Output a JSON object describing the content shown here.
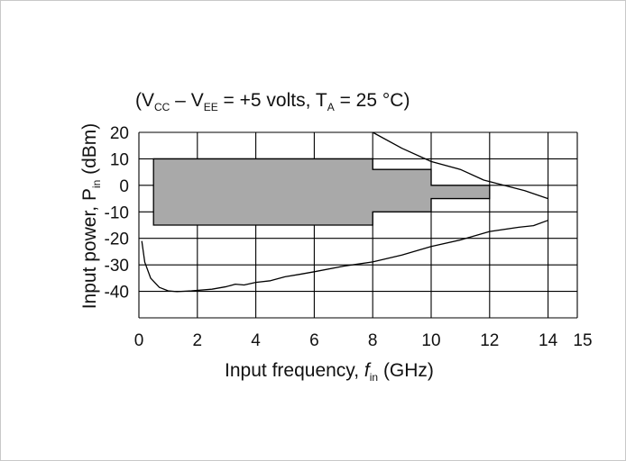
{
  "chart_data": {
    "type": "line",
    "title": {
      "open": "(V",
      "cc_sub": "CC",
      "mid": " – V",
      "ee_sub": "EE",
      "eq": " = +5 volts, T",
      "a_sub": "A",
      "end": " = 25 °C)"
    },
    "xlabel": {
      "prefix": "Input frequency, ",
      "var": "f",
      "sub": "in",
      "suffix": " (GHz)"
    },
    "ylabel": {
      "prefix": "Input power, P",
      "sub": "in",
      "suffix": " (dBm)"
    },
    "xlim": [
      0,
      15
    ],
    "ylim": [
      -50,
      20
    ],
    "x_ticks": [
      0,
      2,
      4,
      6,
      8,
      10,
      12,
      14,
      15
    ],
    "x_tick_labels": [
      "0",
      "2",
      "4",
      "6",
      "8",
      "10",
      "12",
      "14",
      "15"
    ],
    "x_grid": [
      0,
      2,
      4,
      6,
      8,
      10,
      12,
      14,
      15
    ],
    "y_ticks": [
      20,
      10,
      0,
      -10,
      -20,
      -30,
      -40
    ],
    "y_tick_labels": [
      "20",
      "10",
      "0",
      "-10",
      "-20",
      "-30",
      "-40"
    ],
    "y_grid": [
      20,
      10,
      0,
      -10,
      -20,
      -30,
      -40,
      -50
    ],
    "grid": true,
    "shaded_region": {
      "fill": "#a9a9a9",
      "stroke": "#000000",
      "points": [
        [
          0.5,
          10
        ],
        [
          8,
          10
        ],
        [
          8,
          6
        ],
        [
          10,
          6
        ],
        [
          10,
          0
        ],
        [
          12,
          0
        ],
        [
          12,
          -5
        ],
        [
          10,
          -5
        ],
        [
          10,
          -10
        ],
        [
          8,
          -10
        ],
        [
          8,
          -15
        ],
        [
          8,
          -15
        ],
        [
          0.5,
          -15
        ]
      ]
    },
    "series": [
      {
        "color": "#000000",
        "points": [
          [
            0.1,
            -21
          ],
          [
            0.2,
            -29
          ],
          [
            0.4,
            -35
          ],
          [
            0.7,
            -38.5
          ],
          [
            1.0,
            -39.8
          ],
          [
            1.3,
            -40.1
          ],
          [
            1.8,
            -39.8
          ],
          [
            2.5,
            -39.2
          ],
          [
            3.0,
            -38.2
          ],
          [
            3.3,
            -37.3
          ],
          [
            3.6,
            -37.6
          ],
          [
            4.0,
            -36.6
          ],
          [
            4.5,
            -36.0
          ],
          [
            5.0,
            -34.5
          ],
          [
            5.5,
            -33.6
          ],
          [
            6.0,
            -32.6
          ],
          [
            7.0,
            -30.5
          ],
          [
            8.0,
            -28.9
          ],
          [
            9.0,
            -26.3
          ],
          [
            10.0,
            -23.1
          ],
          [
            11.0,
            -20.6
          ],
          [
            12.0,
            -17.4
          ],
          [
            13.0,
            -15.8
          ],
          [
            13.5,
            -15.2
          ],
          [
            14.0,
            -13.2
          ]
        ]
      },
      {
        "color": "#000000",
        "points": [
          [
            8.0,
            20
          ],
          [
            9.0,
            14
          ],
          [
            10.0,
            9
          ],
          [
            11.0,
            6
          ],
          [
            11.8,
            2
          ],
          [
            12.5,
            0
          ],
          [
            13.2,
            -2
          ],
          [
            14.0,
            -5
          ]
        ]
      }
    ]
  }
}
